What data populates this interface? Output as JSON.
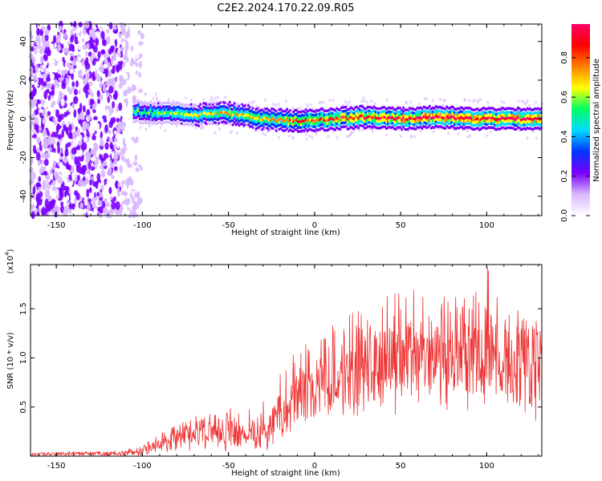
{
  "title": "C2E2.2024.170.22.09.R05",
  "chart_data": [
    {
      "type": "heatmap",
      "xlabel": "Height of straight line (km)",
      "ylabel": "Frequency (Hz)",
      "xlim": [
        -165,
        132
      ],
      "ylim": [
        -50,
        49
      ],
      "xticks": [
        -150,
        -100,
        -50,
        0,
        50,
        100
      ],
      "yticks": [
        -40,
        -20,
        0,
        20,
        40
      ],
      "colorbar": {
        "label": "Normalized spectral amplitude",
        "range": [
          0.0,
          0.97
        ],
        "ticks": [
          "0.0",
          "0.2",
          "0.4",
          "0.6",
          "0.8"
        ],
        "tick_values": [
          0.0,
          0.2,
          0.4,
          0.6,
          0.8
        ],
        "colors": [
          "#ffffff",
          "#d9b8ff",
          "#7a00ff",
          "#0033ff",
          "#00d9ff",
          "#00ff66",
          "#ffff00",
          "#ff8000",
          "#ff0000",
          "#ff0066"
        ]
      },
      "description_values": {
        "noise_region_km": [
          -165,
          -105
        ],
        "signal_band_center_hz": [
          {
            "x": -105,
            "y": 4
          },
          {
            "x": -90,
            "y": 3
          },
          {
            "x": -70,
            "y": 2
          },
          {
            "x": -50,
            "y": 3
          },
          {
            "x": -30,
            "y": 0
          },
          {
            "x": -10,
            "y": -1
          },
          {
            "x": 10,
            "y": 0
          },
          {
            "x": 30,
            "y": 1
          },
          {
            "x": 50,
            "y": 0
          },
          {
            "x": 70,
            "y": 1
          },
          {
            "x": 90,
            "y": 0
          },
          {
            "x": 110,
            "y": 0
          },
          {
            "x": 132,
            "y": 0
          }
        ]
      }
    },
    {
      "type": "line",
      "xlabel": "Height of straight line (km)",
      "ylabel": "SNR (10 * v/v)",
      "yscale_note": "(x10^4)",
      "xlim": [
        -165,
        132
      ],
      "ylim": [
        0,
        1.95
      ],
      "xticks": [
        -150,
        -100,
        -50,
        0,
        50,
        100
      ],
      "yticks": [
        0.5,
        1.0,
        1.5
      ],
      "series": [
        {
          "color": "#ee3333",
          "envelope": [
            {
              "x": -165,
              "low": 0.0,
              "mid": 0.02,
              "high": 0.04
            },
            {
              "x": -110,
              "low": 0.0,
              "mid": 0.03,
              "high": 0.06
            },
            {
              "x": -95,
              "low": 0.01,
              "mid": 0.08,
              "high": 0.16
            },
            {
              "x": -80,
              "low": 0.03,
              "mid": 0.18,
              "high": 0.35
            },
            {
              "x": -65,
              "low": 0.05,
              "mid": 0.25,
              "high": 0.45
            },
            {
              "x": -50,
              "low": 0.05,
              "mid": 0.25,
              "high": 0.55
            },
            {
              "x": -40,
              "low": 0.05,
              "mid": 0.2,
              "high": 0.5
            },
            {
              "x": -25,
              "low": 0.05,
              "mid": 0.3,
              "high": 0.6
            },
            {
              "x": -15,
              "low": 0.2,
              "mid": 0.55,
              "high": 1.1
            },
            {
              "x": 0,
              "low": 0.3,
              "mid": 0.65,
              "high": 1.2
            },
            {
              "x": 20,
              "low": 0.4,
              "mid": 0.8,
              "high": 1.5
            },
            {
              "x": 40,
              "low": 0.4,
              "mid": 0.95,
              "high": 1.75
            },
            {
              "x": 60,
              "low": 0.45,
              "mid": 1.05,
              "high": 1.7
            },
            {
              "x": 80,
              "low": 0.45,
              "mid": 1.0,
              "high": 1.6
            },
            {
              "x": 100,
              "low": 0.45,
              "mid": 1.05,
              "high": 1.95
            },
            {
              "x": 115,
              "low": 0.4,
              "mid": 0.95,
              "high": 1.6
            },
            {
              "x": 132,
              "low": 0.3,
              "mid": 0.9,
              "high": 1.4
            }
          ]
        }
      ]
    }
  ]
}
